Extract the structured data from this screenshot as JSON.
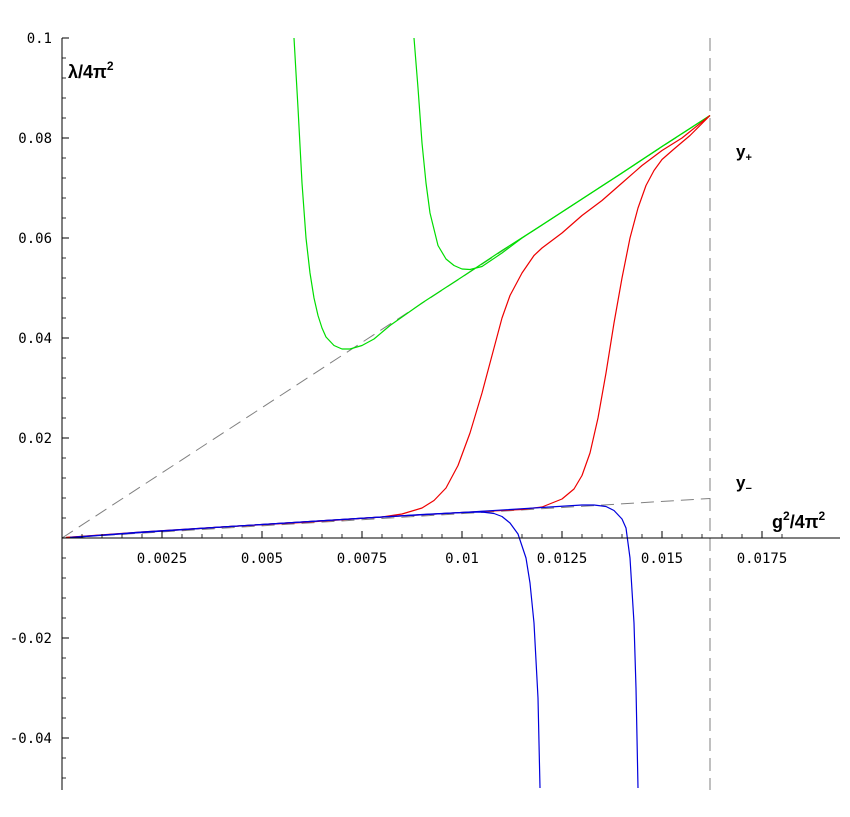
{
  "chart_data": {
    "type": "line",
    "title": "",
    "xlabel": "g²/4π²",
    "ylabel": "λ/4π²",
    "xlim": [
      0,
      0.0182
    ],
    "ylim": [
      -0.05,
      0.1
    ],
    "x_ticks": [
      {
        "value": 0.0025,
        "label": "0.0025"
      },
      {
        "value": 0.005,
        "label": "0.005"
      },
      {
        "value": 0.0075,
        "label": "0.0075"
      },
      {
        "value": 0.01,
        "label": "0.01"
      },
      {
        "value": 0.0125,
        "label": "0.0125"
      },
      {
        "value": 0.015,
        "label": "0.015"
      },
      {
        "value": 0.0175,
        "label": "0.0175"
      }
    ],
    "y_ticks": [
      {
        "value": -0.04,
        "label": "-0.04"
      },
      {
        "value": -0.02,
        "label": "-0.02"
      },
      {
        "value": 0.02,
        "label": "0.02"
      },
      {
        "value": 0.04,
        "label": "0.04"
      },
      {
        "value": 0.06,
        "label": "0.06"
      },
      {
        "value": 0.08,
        "label": "0.08"
      },
      {
        "value": 0.1,
        "label": "0.1"
      }
    ],
    "grid": false,
    "annotations": [
      {
        "text": "y₊",
        "x": 0.01535,
        "y": 0.0775
      },
      {
        "text": "y₋",
        "x": 0.01535,
        "y": 0.0104
      }
    ],
    "vertical_line_x": 0.0162,
    "series": [
      {
        "color": "#808080",
        "dash": true,
        "points": [
          [
            0,
            0
          ],
          [
            0.0162,
            0.0845
          ]
        ]
      },
      {
        "color": "#808080",
        "dash": true,
        "points": [
          [
            0,
            0
          ],
          [
            0.0162,
            0.0079
          ]
        ]
      },
      {
        "color": "#00dd00",
        "points": [
          [
            0.0058,
            0.1
          ],
          [
            0.0059,
            0.086
          ],
          [
            0.006,
            0.071
          ],
          [
            0.0061,
            0.06
          ],
          [
            0.0062,
            0.053
          ],
          [
            0.0063,
            0.048
          ],
          [
            0.0064,
            0.0445
          ],
          [
            0.0065,
            0.042
          ],
          [
            0.0066,
            0.0402
          ],
          [
            0.0068,
            0.0385
          ],
          [
            0.007,
            0.0378
          ],
          [
            0.0072,
            0.0378
          ],
          [
            0.0075,
            0.0385
          ],
          [
            0.0078,
            0.0398
          ],
          [
            0.0082,
            0.0425
          ],
          [
            0.009,
            0.047
          ],
          [
            0.01,
            0.0522
          ],
          [
            0.011,
            0.0575
          ],
          [
            0.012,
            0.0626
          ],
          [
            0.013,
            0.0678
          ],
          [
            0.014,
            0.073
          ],
          [
            0.015,
            0.0783
          ],
          [
            0.0162,
            0.0845
          ]
        ]
      },
      {
        "color": "#00dd00",
        "points": [
          [
            0.0088,
            0.1
          ],
          [
            0.0089,
            0.09
          ],
          [
            0.009,
            0.079
          ],
          [
            0.0091,
            0.071
          ],
          [
            0.0092,
            0.065
          ],
          [
            0.0094,
            0.0585
          ],
          [
            0.0096,
            0.0558
          ],
          [
            0.0098,
            0.0545
          ],
          [
            0.01,
            0.0538
          ],
          [
            0.0102,
            0.0537
          ],
          [
            0.0105,
            0.0543
          ],
          [
            0.011,
            0.057
          ],
          [
            0.0115,
            0.06
          ],
          [
            0.012,
            0.0626
          ],
          [
            0.013,
            0.0678
          ],
          [
            0.014,
            0.073
          ],
          [
            0.015,
            0.0783
          ],
          [
            0.0162,
            0.0845
          ]
        ]
      }
    ],
    "curves_red": [
      {
        "color": "#ee0000",
        "points": [
          [
            0.0001,
            0.0001
          ],
          [
            0.002,
            0.0012
          ],
          [
            0.004,
            0.0022
          ],
          [
            0.006,
            0.0031
          ],
          [
            0.008,
            0.0042
          ],
          [
            0.0085,
            0.0048
          ],
          [
            0.009,
            0.006
          ],
          [
            0.0093,
            0.0075
          ],
          [
            0.0096,
            0.01
          ],
          [
            0.0099,
            0.0145
          ],
          [
            0.0102,
            0.021
          ],
          [
            0.0105,
            0.029
          ],
          [
            0.0108,
            0.038
          ],
          [
            0.011,
            0.044
          ],
          [
            0.0112,
            0.0485
          ],
          [
            0.0115,
            0.053
          ],
          [
            0.0118,
            0.0565
          ],
          [
            0.012,
            0.058
          ],
          [
            0.0125,
            0.061
          ],
          [
            0.013,
            0.0645
          ],
          [
            0.0135,
            0.0675
          ],
          [
            0.014,
            0.071
          ],
          [
            0.0145,
            0.0745
          ],
          [
            0.015,
            0.0775
          ],
          [
            0.0155,
            0.08
          ],
          [
            0.0162,
            0.0845
          ]
        ]
      },
      {
        "color": "#ee0000",
        "points": [
          [
            0.0001,
            0.0001
          ],
          [
            0.004,
            0.0022
          ],
          [
            0.008,
            0.0042
          ],
          [
            0.01,
            0.0051
          ],
          [
            0.0115,
            0.0057
          ],
          [
            0.012,
            0.0062
          ],
          [
            0.0125,
            0.0078
          ],
          [
            0.0128,
            0.0098
          ],
          [
            0.013,
            0.0125
          ],
          [
            0.0132,
            0.017
          ],
          [
            0.0134,
            0.024
          ],
          [
            0.0136,
            0.033
          ],
          [
            0.0138,
            0.043
          ],
          [
            0.014,
            0.052
          ],
          [
            0.0142,
            0.06
          ],
          [
            0.0144,
            0.066
          ],
          [
            0.0146,
            0.0705
          ],
          [
            0.0148,
            0.0735
          ],
          [
            0.015,
            0.0757
          ],
          [
            0.0153,
            0.0778
          ],
          [
            0.0157,
            0.0805
          ],
          [
            0.0162,
            0.0845
          ]
        ]
      }
    ],
    "curves_blue": [
      {
        "color": "#0000dd",
        "points": [
          [
            0.0002,
            0.0001
          ],
          [
            0.002,
            0.0012
          ],
          [
            0.004,
            0.0022
          ],
          [
            0.006,
            0.0032
          ],
          [
            0.008,
            0.0042
          ],
          [
            0.009,
            0.0047
          ],
          [
            0.01,
            0.0051
          ],
          [
            0.0105,
            0.0052
          ],
          [
            0.0108,
            0.0049
          ],
          [
            0.011,
            0.0043
          ],
          [
            0.0112,
            0.003
          ],
          [
            0.0114,
            0.0008
          ],
          [
            0.0116,
            -0.004
          ],
          [
            0.0117,
            -0.009
          ],
          [
            0.0118,
            -0.017
          ],
          [
            0.0119,
            -0.032
          ],
          [
            0.01195,
            -0.05
          ]
        ]
      },
      {
        "color": "#0000dd",
        "points": [
          [
            0.0002,
            0.0001
          ],
          [
            0.004,
            0.0022
          ],
          [
            0.008,
            0.0042
          ],
          [
            0.01,
            0.0051
          ],
          [
            0.012,
            0.0061
          ],
          [
            0.013,
            0.0066
          ],
          [
            0.0133,
            0.0066
          ],
          [
            0.0136,
            0.0063
          ],
          [
            0.0138,
            0.0055
          ],
          [
            0.014,
            0.0038
          ],
          [
            0.0141,
            0.002
          ],
          [
            0.0142,
            -0.004
          ],
          [
            0.0143,
            -0.017
          ],
          [
            0.01435,
            -0.03
          ],
          [
            0.0144,
            -0.05
          ]
        ]
      }
    ]
  }
}
